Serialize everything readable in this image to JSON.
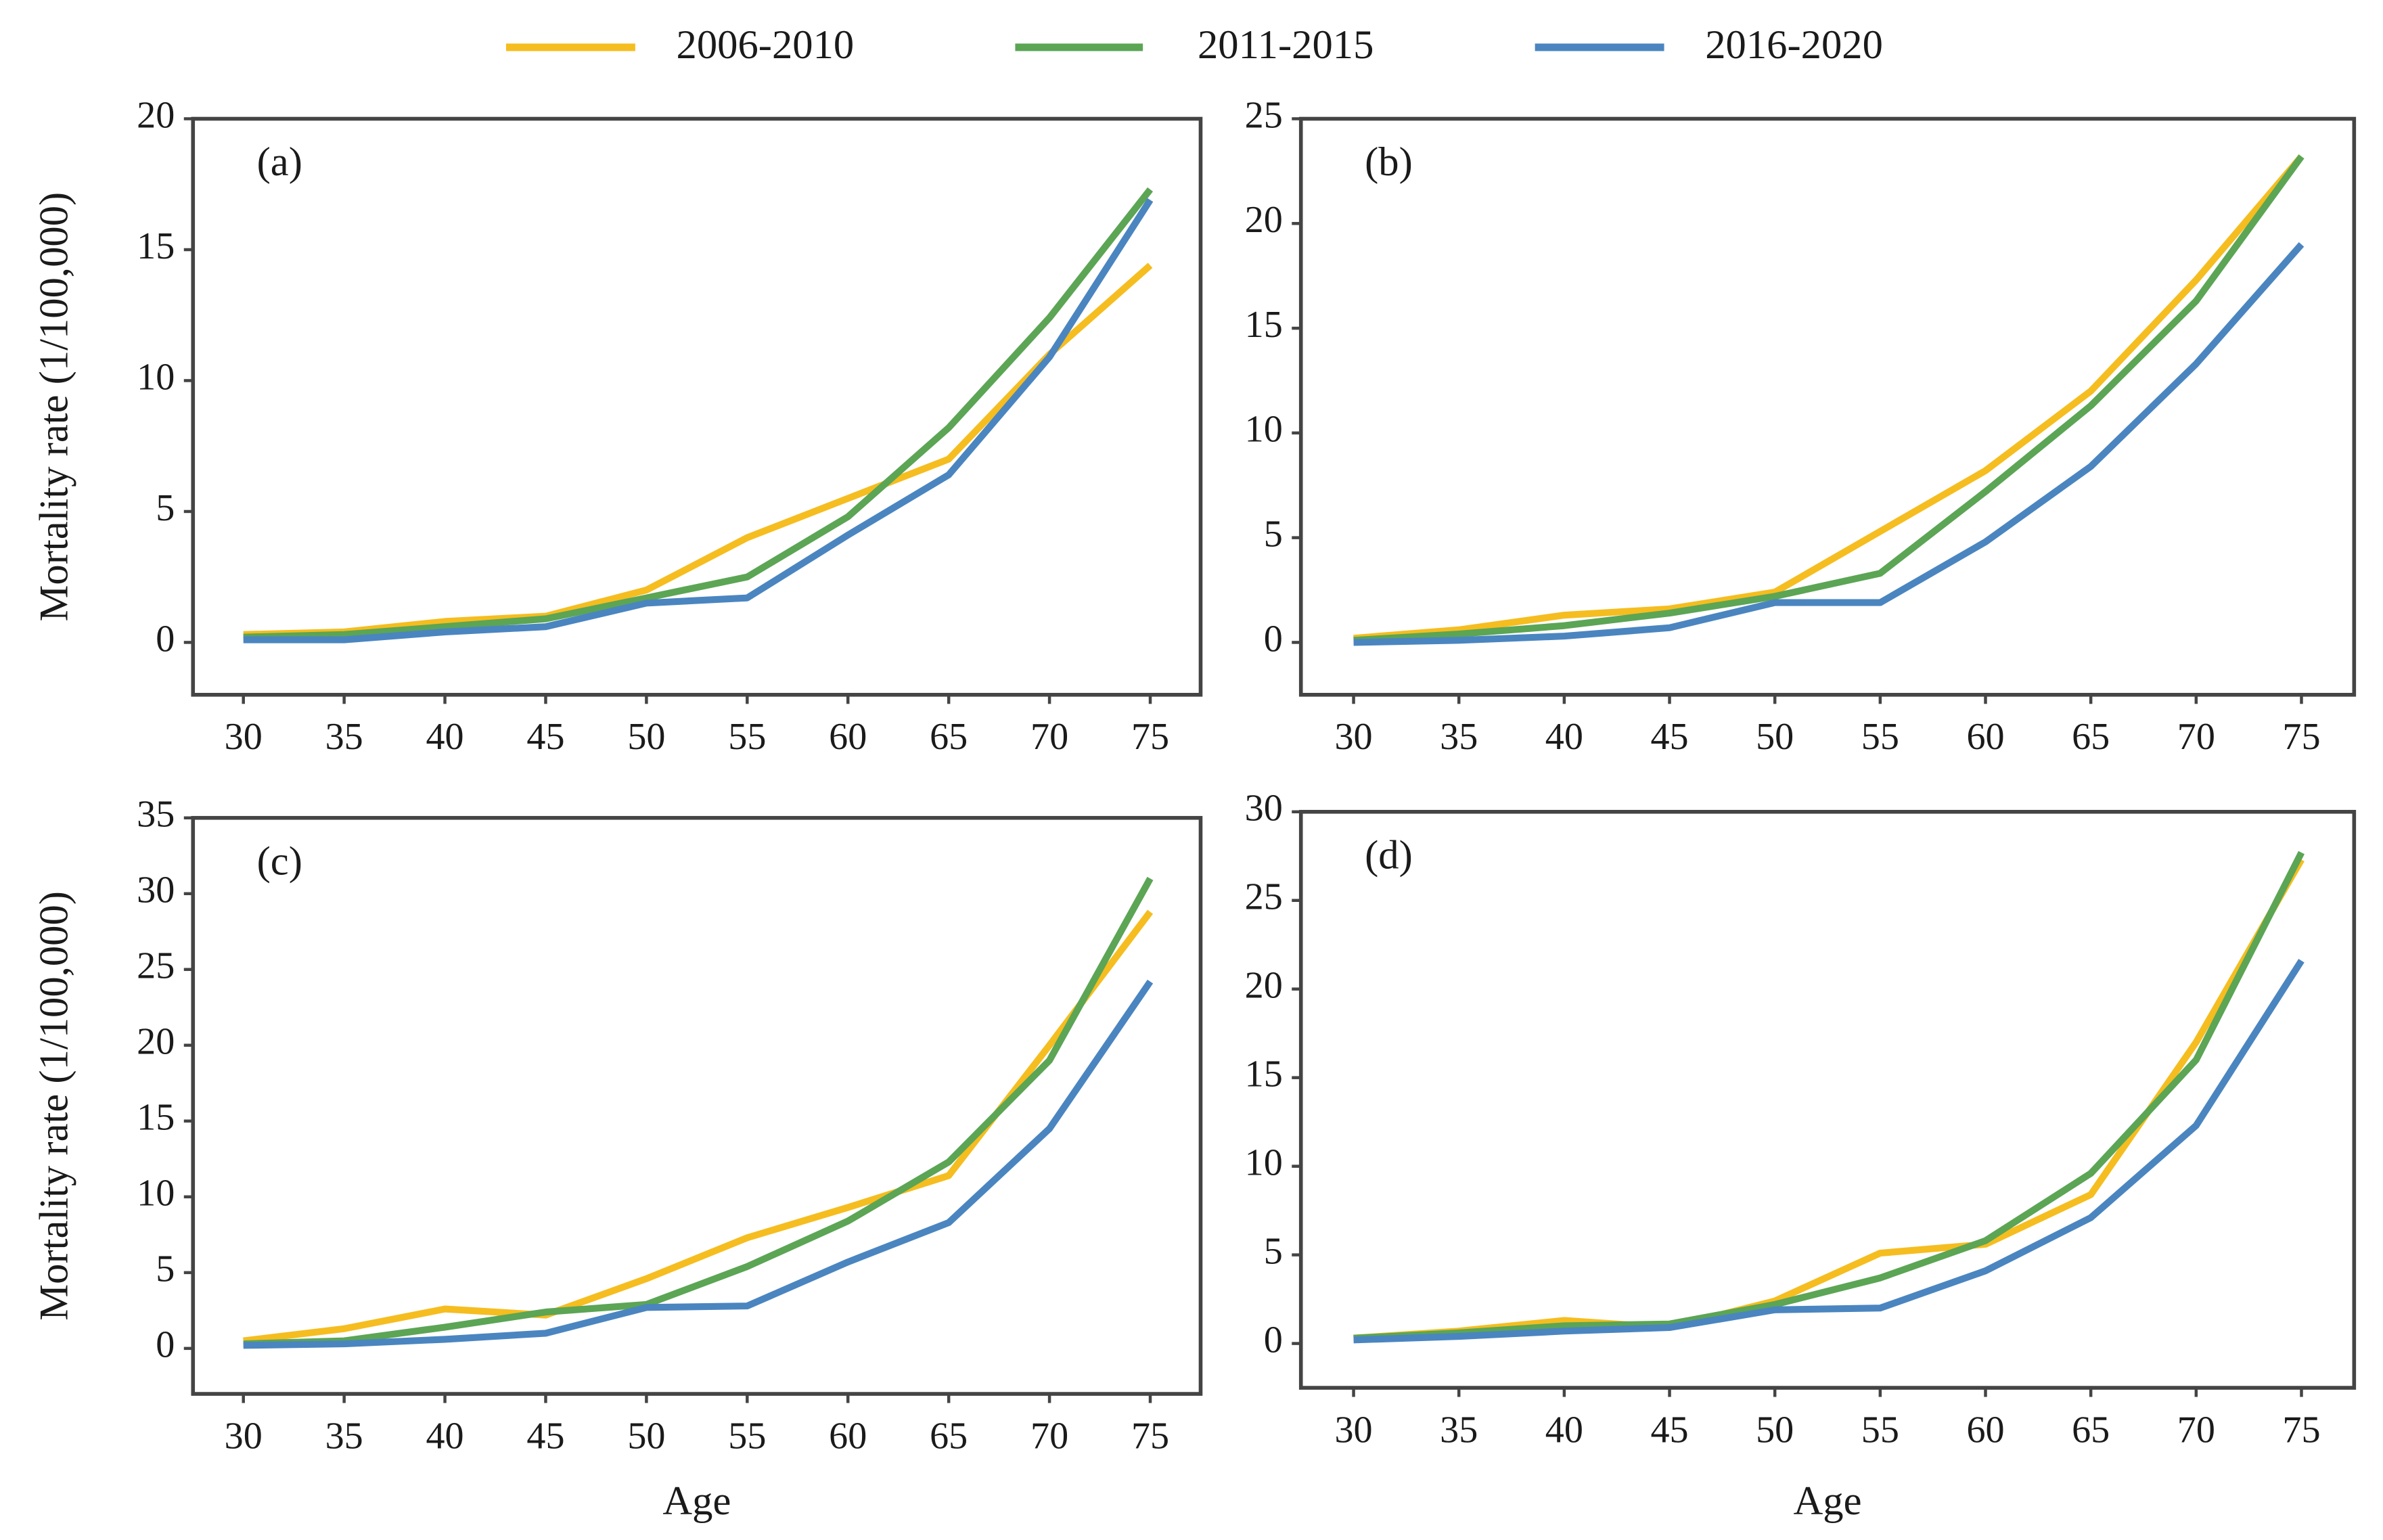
{
  "chart_data": [
    {
      "type": "line",
      "title": "(a)",
      "ylabel": "Mortality rate (1/100,000)",
      "x": [
        30,
        35,
        40,
        45,
        50,
        55,
        60,
        65,
        70,
        75
      ],
      "xlim": [
        27.5,
        77.5
      ],
      "xticks": [
        30,
        35,
        40,
        45,
        50,
        55,
        60,
        65,
        70,
        75
      ],
      "ylim": [
        -2,
        20
      ],
      "yticks": [
        0,
        5,
        10,
        15,
        20
      ],
      "series": [
        {
          "name": "2006-2010",
          "color": "#f5bd1f",
          "values": [
            0.3,
            0.4,
            0.8,
            1.0,
            2.0,
            4.0,
            5.5,
            7.0,
            11.0,
            14.4
          ]
        },
        {
          "name": "2011-2015",
          "color": "#5ba555",
          "values": [
            0.2,
            0.3,
            0.6,
            0.9,
            1.7,
            2.5,
            4.8,
            8.2,
            12.4,
            17.3
          ]
        },
        {
          "name": "2016-2020",
          "color": "#4a85c0",
          "values": [
            0.1,
            0.1,
            0.4,
            0.6,
            1.5,
            1.7,
            4.1,
            6.4,
            10.9,
            16.9
          ]
        }
      ]
    },
    {
      "type": "line",
      "title": "(b)",
      "x": [
        30,
        35,
        40,
        45,
        50,
        55,
        60,
        65,
        70,
        75
      ],
      "xlim": [
        27.5,
        77.5
      ],
      "xticks": [
        30,
        35,
        40,
        45,
        50,
        55,
        60,
        65,
        70,
        75
      ],
      "ylim": [
        -2.5,
        25
      ],
      "yticks": [
        0,
        5,
        10,
        15,
        20,
        25
      ],
      "series": [
        {
          "name": "2006-2010",
          "color": "#f5bd1f",
          "values": [
            0.2,
            0.6,
            1.3,
            1.6,
            2.4,
            5.3,
            8.2,
            12.0,
            17.3,
            23.2
          ]
        },
        {
          "name": "2011-2015",
          "color": "#5ba555",
          "values": [
            0.1,
            0.4,
            0.8,
            1.4,
            2.2,
            3.3,
            7.2,
            11.3,
            16.3,
            23.2
          ]
        },
        {
          "name": "2016-2020",
          "color": "#4a85c0",
          "values": [
            0.0,
            0.1,
            0.3,
            0.7,
            1.9,
            1.9,
            4.8,
            8.4,
            13.3,
            19.0
          ]
        }
      ]
    },
    {
      "type": "line",
      "title": "(c)",
      "ylabel": "Mortality rate (1/100,000)",
      "xlabel": "Age",
      "x": [
        30,
        35,
        40,
        45,
        50,
        55,
        60,
        65,
        70,
        75
      ],
      "xlim": [
        27.5,
        77.5
      ],
      "xticks": [
        30,
        35,
        40,
        45,
        50,
        55,
        60,
        65,
        70,
        75
      ],
      "ylim": [
        -3,
        35
      ],
      "yticks": [
        0,
        5,
        10,
        15,
        20,
        25,
        30,
        35
      ],
      "series": [
        {
          "name": "2006-2010",
          "color": "#f5bd1f",
          "values": [
            0.5,
            1.3,
            2.6,
            2.2,
            4.6,
            7.3,
            9.3,
            11.4,
            20.0,
            28.8
          ]
        },
        {
          "name": "2011-2015",
          "color": "#5ba555",
          "values": [
            0.3,
            0.5,
            1.4,
            2.4,
            2.9,
            5.4,
            8.4,
            12.3,
            19.0,
            31.0
          ]
        },
        {
          "name": "2016-2020",
          "color": "#4a85c0",
          "values": [
            0.2,
            0.3,
            0.6,
            1.0,
            2.7,
            2.8,
            5.7,
            8.3,
            14.5,
            24.2
          ]
        }
      ]
    },
    {
      "type": "line",
      "title": "(d)",
      "xlabel": "Age",
      "x": [
        30,
        35,
        40,
        45,
        50,
        55,
        60,
        65,
        70,
        75
      ],
      "xlim": [
        27.5,
        77.5
      ],
      "xticks": [
        30,
        35,
        40,
        45,
        50,
        55,
        60,
        65,
        70,
        75
      ],
      "ylim": [
        -2.5,
        30
      ],
      "yticks": [
        0,
        5,
        10,
        15,
        20,
        25,
        30
      ],
      "series": [
        {
          "name": "2006-2010",
          "color": "#f5bd1f",
          "values": [
            0.3,
            0.7,
            1.3,
            0.9,
            2.4,
            5.1,
            5.6,
            8.4,
            17.0,
            27.3
          ]
        },
        {
          "name": "2011-2015",
          "color": "#5ba555",
          "values": [
            0.3,
            0.6,
            1.0,
            1.1,
            2.2,
            3.7,
            5.8,
            9.6,
            16.0,
            27.7
          ]
        },
        {
          "name": "2016-2020",
          "color": "#4a85c0",
          "values": [
            0.2,
            0.4,
            0.7,
            0.9,
            1.9,
            2.0,
            4.1,
            7.1,
            12.3,
            21.6
          ]
        }
      ]
    }
  ]
}
